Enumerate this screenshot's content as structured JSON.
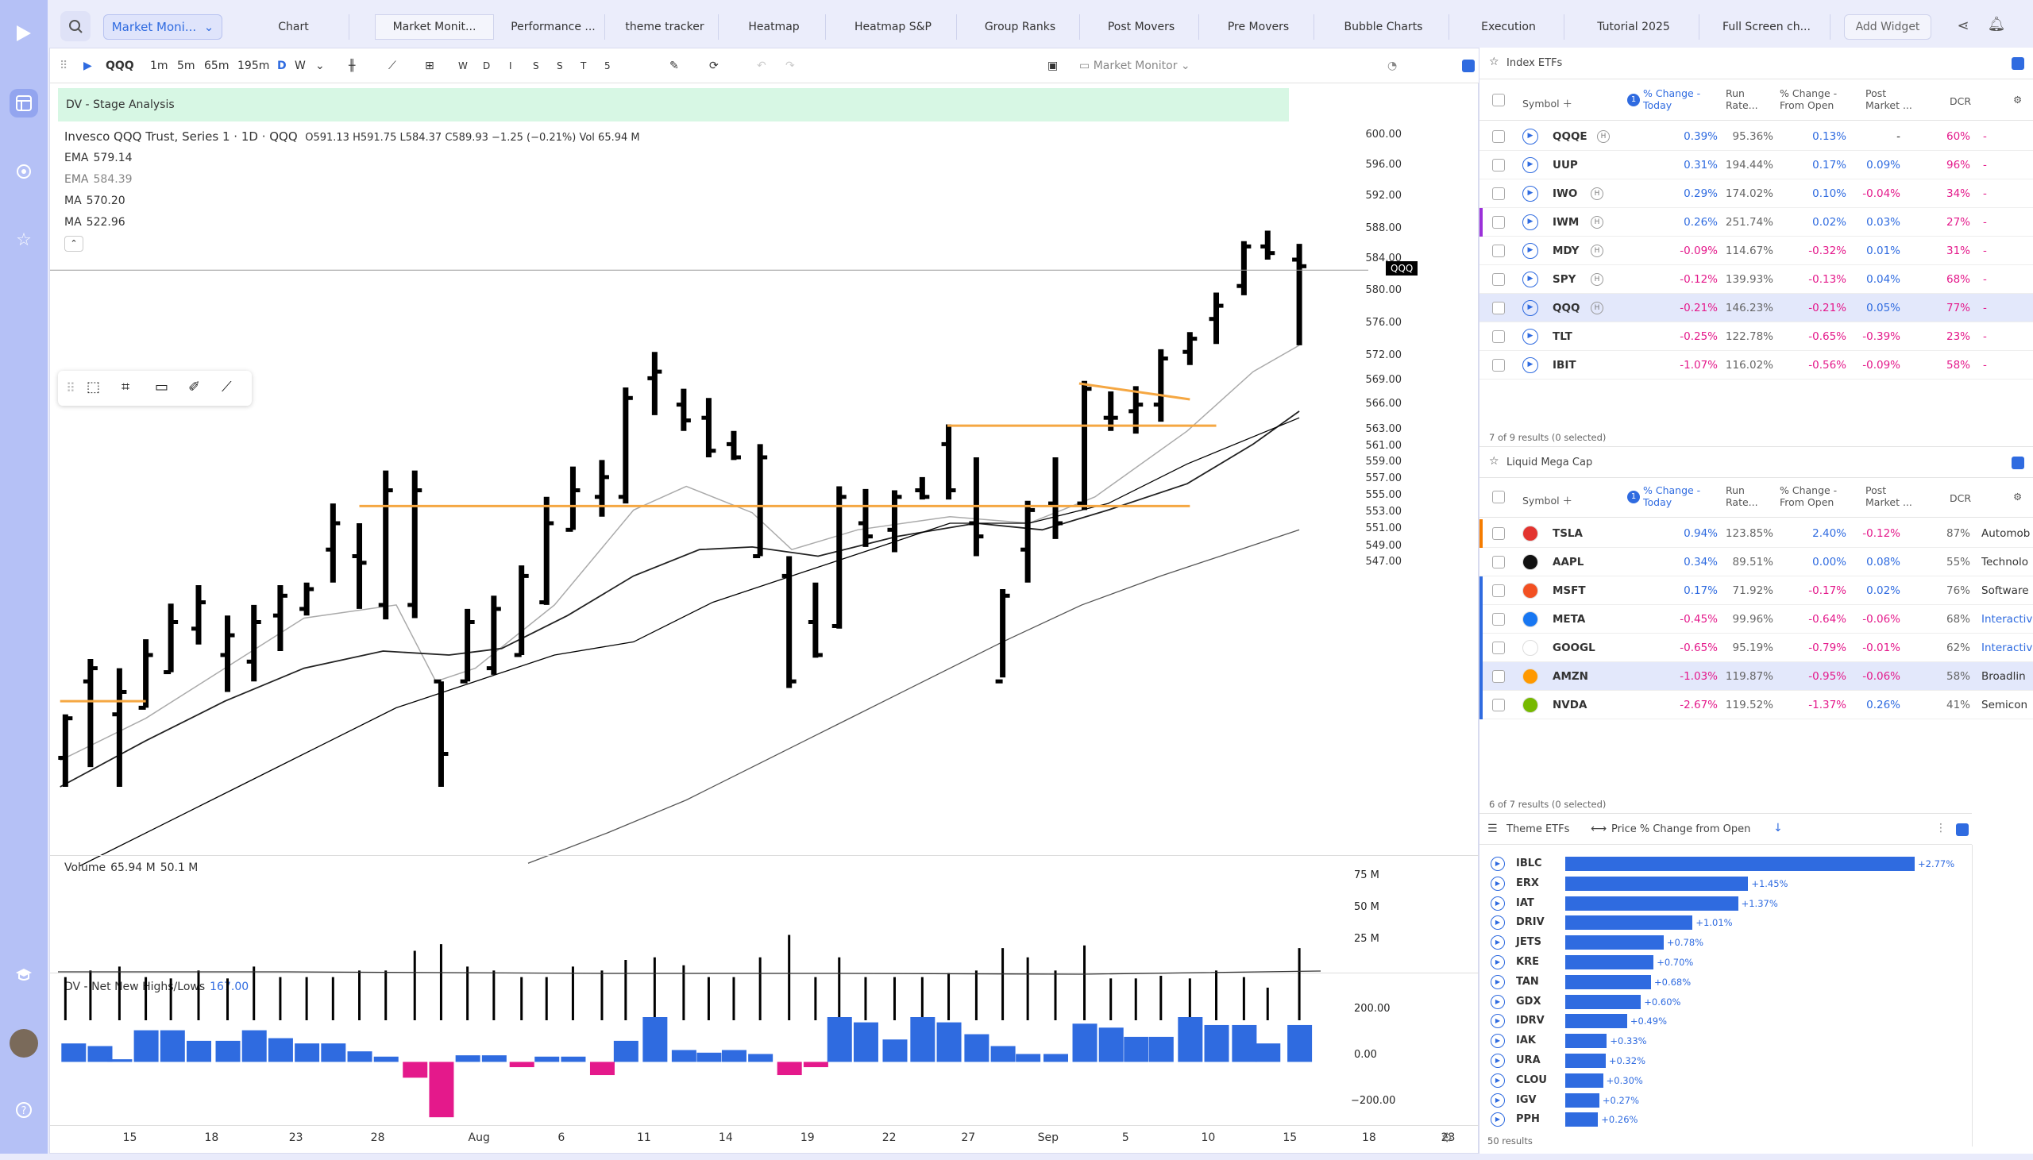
{
  "tabs": [
    "Market Moni...",
    "Chart",
    "Market Monit...",
    "Performance ...",
    "theme tracker",
    "Heatmap",
    "Heatmap S&P",
    "Group Ranks",
    "Post Movers",
    "Pre Movers",
    "Bubble Charts",
    "Execution",
    "Tutorial 2025",
    "Full Screen ch...",
    "Add Widget"
  ],
  "toolbar": {
    "symbol": "QQQ",
    "intervals": [
      "1m",
      "5m",
      "65m",
      "195m",
      "D",
      "W"
    ],
    "ranges": [
      "W",
      "D",
      "I",
      "S",
      "S",
      "T",
      "5"
    ],
    "layout": "Market Monitor"
  },
  "banner": "DV - Stage Analysis",
  "legend": {
    "title": "Invesco QQQ Trust, Series 1 · 1D · QQQ",
    "ohlc": "O591.13  H591.75  L584.37  C589.93  −1.25 (−0.21%)  Vol 65.94 M",
    "mas": [
      {
        "name": "EMA",
        "value": "579.14"
      },
      {
        "name": "EMA",
        "value": "584.39"
      },
      {
        "name": "MA",
        "value": "570.20"
      },
      {
        "name": "MA",
        "value": "522.96"
      }
    ]
  },
  "price_tag": "QQQ",
  "yaxis": [
    "600.00",
    "596.00",
    "592.00",
    "588.00",
    "584.00",
    "580.00",
    "576.00",
    "572.00",
    "569.00",
    "566.00",
    "563.00",
    "561.00",
    "559.00",
    "557.00",
    "555.00",
    "553.00",
    "551.00",
    "549.00",
    "547.00"
  ],
  "volume": {
    "label": "Volume",
    "v1": "65.94 M",
    "v2": "50.1 M",
    "ticks": [
      "75 M",
      "50 M",
      "25 M"
    ]
  },
  "nnh": {
    "label": "DV - Net New Highs/Lows",
    "value": "167.00",
    "ticks": [
      "200.00",
      "0.00",
      "−200.00"
    ]
  },
  "xaxis": [
    "15",
    "18",
    "23",
    "28",
    "Aug",
    "6",
    "11",
    "14",
    "19",
    "22",
    "27",
    "Sep",
    "5",
    "10",
    "15",
    "18",
    "23"
  ],
  "index_etfs": {
    "title": "Index ETFs",
    "footer": "7 of 9 results (0 selected)",
    "headers": [
      "Symbol",
      "% Change - Today",
      "Run Rate...",
      "% Change - From Open",
      "Post Market ...",
      "DCR"
    ],
    "rows": [
      [
        "QQQE",
        "0.39%",
        "95.36%",
        "0.13%",
        "-",
        "60%"
      ],
      [
        "UUP",
        "0.31%",
        "194.44%",
        "0.17%",
        "0.09%",
        "96%"
      ],
      [
        "IWO",
        "0.29%",
        "174.02%",
        "0.10%",
        "-0.04%",
        "34%"
      ],
      [
        "IWM",
        "0.26%",
        "251.74%",
        "0.02%",
        "0.03%",
        "27%"
      ],
      [
        "MDY",
        "-0.09%",
        "114.67%",
        "-0.32%",
        "0.01%",
        "31%"
      ],
      [
        "SPY",
        "-0.12%",
        "139.93%",
        "-0.13%",
        "0.04%",
        "68%"
      ],
      [
        "QQQ",
        "-0.21%",
        "146.23%",
        "-0.21%",
        "0.05%",
        "77%"
      ],
      [
        "TLT",
        "-0.25%",
        "122.78%",
        "-0.65%",
        "-0.39%",
        "23%"
      ],
      [
        "IBIT",
        "-1.07%",
        "116.02%",
        "-0.56%",
        "-0.09%",
        "58%"
      ]
    ]
  },
  "mega_cap": {
    "title": "Liquid Mega Cap",
    "footer": "6 of 7 results (0 selected)",
    "rows": [
      [
        "TSLA",
        "0.94%",
        "123.85%",
        "2.40%",
        "-0.12%",
        "87%",
        "Automob"
      ],
      [
        "AAPL",
        "0.34%",
        "89.51%",
        "0.00%",
        "0.08%",
        "55%",
        "Technolo"
      ],
      [
        "MSFT",
        "0.17%",
        "71.92%",
        "-0.17%",
        "0.02%",
        "76%",
        "Software"
      ],
      [
        "META",
        "-0.45%",
        "99.96%",
        "-0.64%",
        "-0.06%",
        "68%",
        "Interactiv"
      ],
      [
        "GOOGL",
        "-0.65%",
        "95.19%",
        "-0.79%",
        "-0.01%",
        "62%",
        "Interactiv"
      ],
      [
        "AMZN",
        "-1.03%",
        "119.87%",
        "-0.95%",
        "-0.06%",
        "58%",
        "Broadlin"
      ],
      [
        "NVDA",
        "-2.67%",
        "119.52%",
        "-1.37%",
        "0.26%",
        "41%",
        "Semicon"
      ]
    ]
  },
  "themes": {
    "title": "Theme ETFs",
    "sort": "Price % Change from Open",
    "footer": "50 results",
    "rows": [
      [
        "IBLC",
        2.77,
        "+2.77%"
      ],
      [
        "ERX",
        1.45,
        "+1.45%"
      ],
      [
        "IAT",
        1.37,
        "+1.37%"
      ],
      [
        "DRIV",
        1.01,
        "+1.01%"
      ],
      [
        "JETS",
        0.78,
        "+0.78%"
      ],
      [
        "KRE",
        0.7,
        "+0.70%"
      ],
      [
        "TAN",
        0.68,
        "+0.68%"
      ],
      [
        "GDX",
        0.6,
        "+0.60%"
      ],
      [
        "IDRV",
        0.49,
        "+0.49%"
      ],
      [
        "IAK",
        0.33,
        "+0.33%"
      ],
      [
        "URA",
        0.32,
        "+0.32%"
      ],
      [
        "CLOU",
        0.3,
        "+0.30%"
      ],
      [
        "IGV",
        0.27,
        "+0.27%"
      ],
      [
        "PPH",
        0.26,
        "+0.26%"
      ]
    ]
  },
  "colors": {
    "accent": "#2f6be0",
    "negative": "#e4198b",
    "orange": "#f5a742"
  }
}
